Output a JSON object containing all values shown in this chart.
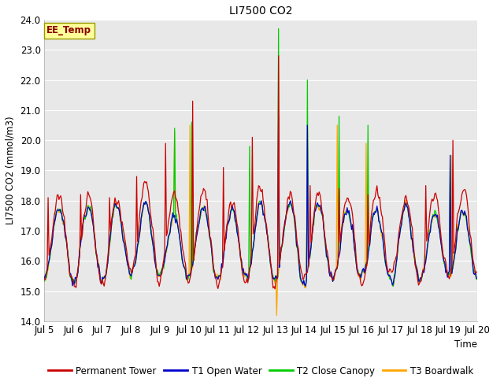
{
  "title": "LI7500 CO2",
  "ylabel": "LI7500 CO2 (mmol/m3)",
  "xlabel": "Time",
  "ylim": [
    14.0,
    24.0
  ],
  "yticks": [
    14.0,
    15.0,
    16.0,
    17.0,
    18.0,
    19.0,
    20.0,
    21.0,
    22.0,
    23.0,
    24.0
  ],
  "xtick_labels": [
    "Jul 5",
    "Jul 6",
    "Jul 7",
    "Jul 8",
    "Jul 9",
    "Jul 10",
    "Jul 11",
    "Jul 12",
    "Jul 13",
    "Jul 14",
    "Jul 15",
    "Jul 16",
    "Jul 17",
    "Jul 18",
    "Jul 19",
    "Jul 20"
  ],
  "annotation_text": "EE_Temp",
  "annotation_box_color": "#FFFF99",
  "annotation_text_color": "#8B0000",
  "annotation_edge_color": "#999900",
  "bg_color": "#E8E8E8",
  "plot_bg_color": "#E8E8E8",
  "grid_color": "#FFFFFF",
  "series_colors": {
    "Permanent Tower": "#CC0000",
    "T1 Open Water": "#0000CC",
    "T2 Close Canopy": "#00CC00",
    "T3 Boardwalk": "#FFA500"
  },
  "n_points": 480,
  "figsize": [
    6.4,
    4.8
  ],
  "dpi": 100
}
